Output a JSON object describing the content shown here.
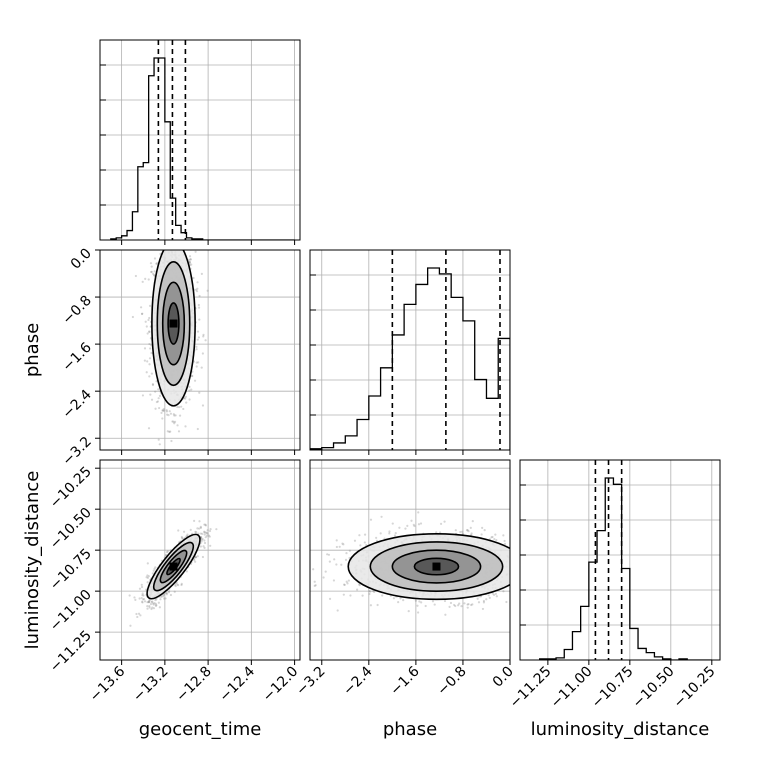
{
  "chart_data": {
    "type": "corner",
    "parameters": [
      "geocent_time",
      "phase",
      "luminosity_distance"
    ],
    "axes": {
      "geocent_time": {
        "range": [
          -13.8,
          -11.95
        ],
        "ticks": [
          -13.6,
          -13.2,
          -12.8,
          -12.4,
          -12.0
        ],
        "tick_labels": [
          "−13.6",
          "−13.2",
          "−12.8",
          "−12.4",
          "−12.0"
        ]
      },
      "phase": {
        "range": [
          -3.4,
          0.0
        ],
        "ticks": [
          -3.2,
          -2.4,
          -1.6,
          -0.8,
          0.0
        ],
        "tick_labels": [
          "−3.2",
          "−2.4",
          "−1.6",
          "−0.8",
          "0.0"
        ]
      },
      "luminosity_distance": {
        "range": [
          -11.42,
          -10.2
        ],
        "ticks": [
          -11.25,
          -11.0,
          -10.75,
          -10.5,
          -10.25
        ],
        "tick_labels": [
          "−11.25",
          "−11.00",
          "−10.75",
          "−10.50",
          "−10.25"
        ]
      }
    },
    "grid": true,
    "histograms": {
      "geocent_time": {
        "bin_edges": [
          -13.7,
          -13.65,
          -13.6,
          -13.55,
          -13.5,
          -13.45,
          -13.4,
          -13.35,
          -13.3,
          -13.25,
          -13.2,
          -13.15,
          -13.1,
          -13.05,
          -13.0,
          -12.95,
          -12.9,
          -12.85,
          -12.8,
          -12.75,
          -12.7,
          -12.65,
          -12.6,
          -12.55,
          -12.5,
          -12.45,
          -12.4,
          -12.35,
          -12.3,
          -12.25,
          -12.2,
          -12.15,
          -12.1,
          -12.05,
          -12.0
        ],
        "counts": [
          1,
          2,
          4,
          9,
          27,
          70,
          74,
          157,
          174,
          174,
          113,
          40,
          14,
          7,
          2,
          1,
          1,
          0,
          0,
          0,
          0,
          0,
          0,
          0,
          0,
          0,
          0,
          0,
          0,
          0,
          0,
          0,
          0,
          0
        ],
        "quantiles": [
          -13.26,
          -13.13,
          -13.01
        ]
      },
      "phase": {
        "bin_edges": [
          -3.4,
          -3.2,
          -3.0,
          -2.8,
          -2.6,
          -2.4,
          -2.2,
          -2.0,
          -1.8,
          -1.6,
          -1.4,
          -1.2,
          -1.0,
          -0.8,
          -0.6,
          -0.4,
          -0.2,
          0.0
        ],
        "counts": [
          1,
          2,
          6,
          12,
          26,
          46,
          70,
          98,
          124,
          141,
          155,
          150,
          130,
          110,
          60,
          44,
          95
        ],
        "quantiles": [
          -2.0,
          -1.09,
          -0.17
        ]
      },
      "luminosity_distance": {
        "bin_edges": [
          -11.3,
          -11.25,
          -11.2,
          -11.15,
          -11.1,
          -11.05,
          -11.0,
          -10.95,
          -10.9,
          -10.85,
          -10.8,
          -10.75,
          -10.7,
          -10.65,
          -10.6,
          -10.55,
          -10.5,
          -10.45,
          -10.4,
          -10.35,
          -10.3,
          -10.25
        ],
        "counts": [
          1,
          1,
          2,
          10,
          27,
          51,
          93,
          123,
          173,
          167,
          87,
          30,
          11,
          7,
          3,
          1,
          0,
          1,
          0,
          0,
          0
        ],
        "quantiles": [
          -10.96,
          -10.88,
          -10.8
        ]
      }
    },
    "scatter_pairs": [
      {
        "x": "geocent_time",
        "y": "phase",
        "center": [
          -13.12,
          -1.25
        ],
        "sigma": [
          0.1,
          0.7
        ],
        "rho": 0.0
      },
      {
        "x": "geocent_time",
        "y": "luminosity_distance",
        "center": [
          -13.12,
          -10.85
        ],
        "sigma": [
          0.12,
          0.1
        ],
        "rho": 0.85
      },
      {
        "x": "phase",
        "y": "luminosity_distance",
        "center": [
          -1.25,
          -10.85
        ],
        "sigma": [
          0.75,
          0.1
        ],
        "rho": 0.0
      }
    ]
  }
}
